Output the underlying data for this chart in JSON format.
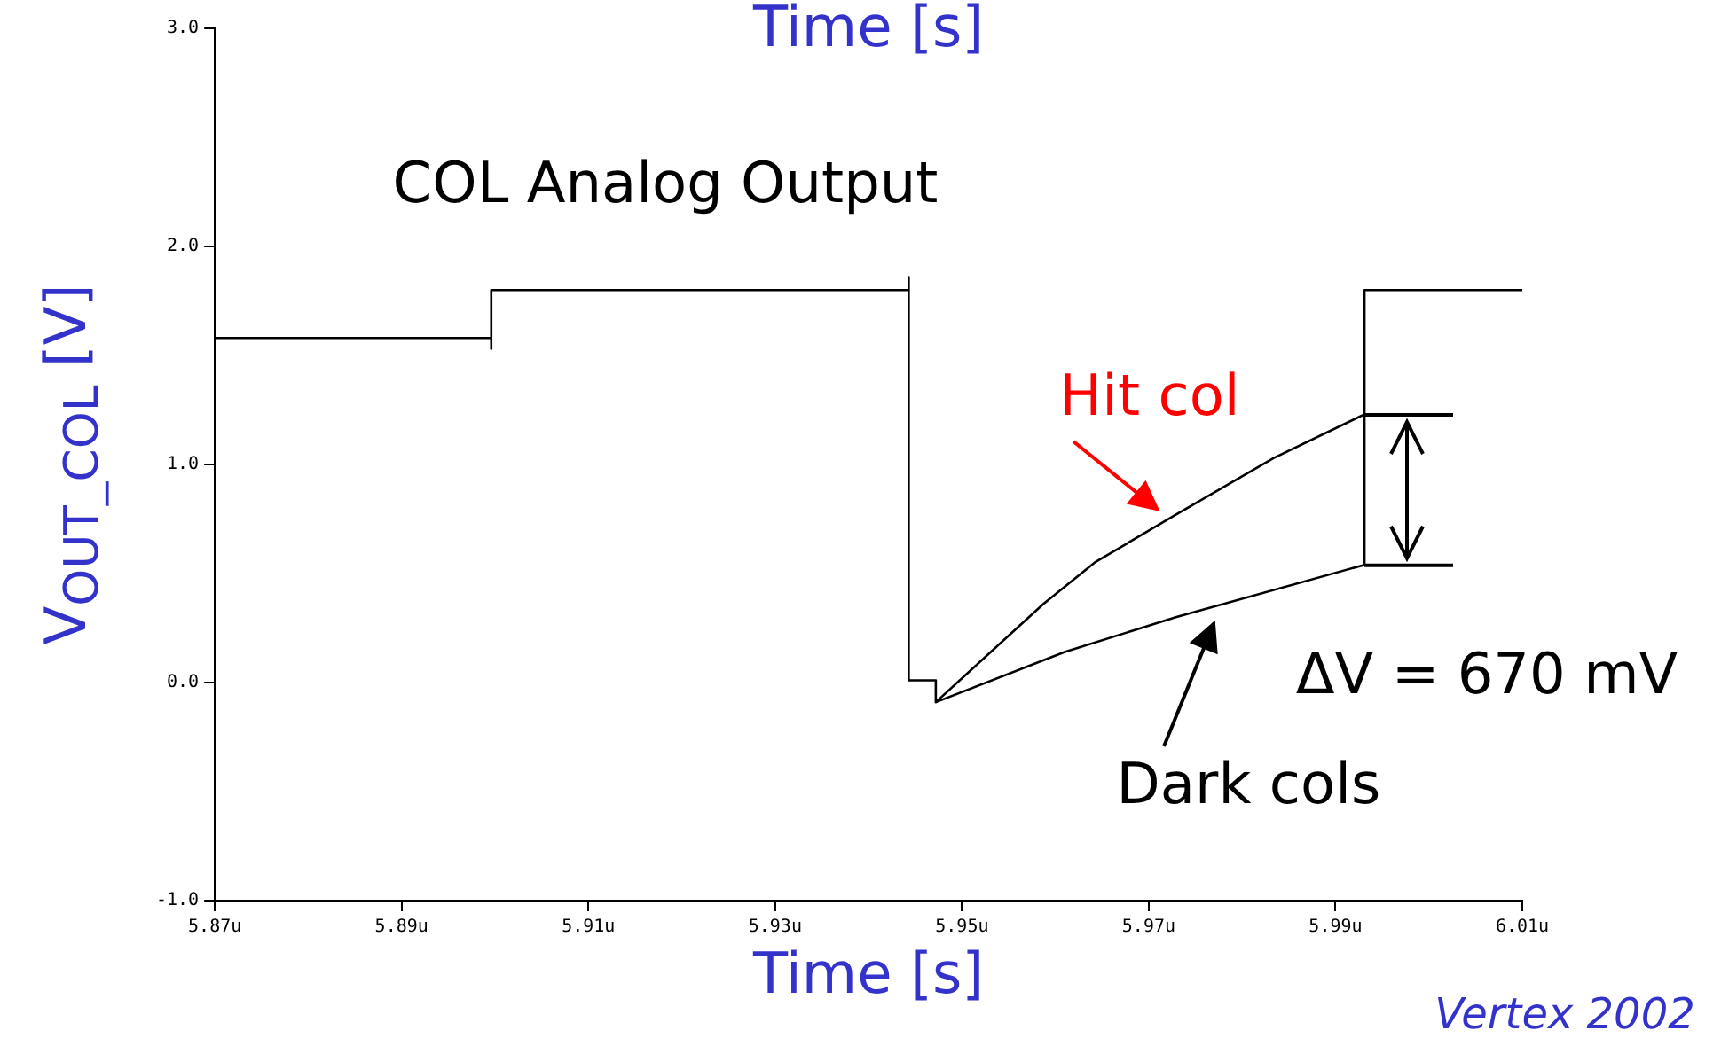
{
  "chart_data": {
    "type": "line",
    "title": "Time [s]",
    "xlabel": "Time [s]",
    "ylabel": "V$_{OUT_COL}$ [V]",
    "xlim": [
      5.87,
      6.01
    ],
    "xticks": [
      {
        "value": 5.87,
        "label": "5.87u"
      },
      {
        "value": 5.89,
        "label": "5.89u"
      },
      {
        "value": 5.91,
        "label": "5.91u"
      },
      {
        "value": 5.93,
        "label": "5.93u"
      },
      {
        "value": 5.95,
        "label": "5.95u"
      },
      {
        "value": 5.97,
        "label": "5.97u"
      },
      {
        "value": 5.99,
        "label": "5.99u"
      },
      {
        "value": 6.01,
        "label": "6.01u"
      }
    ],
    "ylim": [
      -1,
      3
    ],
    "yticks": [
      {
        "value": -1,
        "label": "-1.0"
      },
      {
        "value": 0,
        "label": "0.0"
      },
      {
        "value": 1,
        "label": "1.0"
      },
      {
        "value": 2,
        "label": "2.0"
      },
      {
        "value": 3,
        "label": "3.0"
      }
    ],
    "grid": false,
    "legend": "right",
    "marker": "none",
    "line_style": "solid",
    "series": [
      {
        "color": "#000000",
        "x": [
          5.87,
          5.8996,
          5.8996,
          5.8996,
          5.9443,
          5.9443,
          5.9443,
          5.9472,
          5.9472
        ],
        "values": [
          1.58,
          1.58,
          1.53,
          1.8,
          1.8,
          1.86,
          0.01,
          0.01,
          -0.09
        ]
      },
      {
        "name": "Hit col",
        "color": "#000000",
        "x": [
          5.9472,
          5.9587,
          5.9642,
          5.9729,
          5.9834,
          5.9931
        ],
        "values": [
          -0.09,
          0.36,
          0.55,
          0.77,
          1.03,
          1.23
        ]
      },
      {
        "name": "Dark cols",
        "color": "#000000",
        "x": [
          5.9472,
          5.961,
          5.9729,
          5.9931,
          5.9931,
          6.01
        ],
        "values": [
          -0.09,
          0.14,
          0.3,
          0.54,
          1.8,
          1.8
        ]
      }
    ],
    "annotations": [
      "COL Analog Output",
      "ΔV = 670 mV",
      "Vertex 2002"
    ]
  }
}
